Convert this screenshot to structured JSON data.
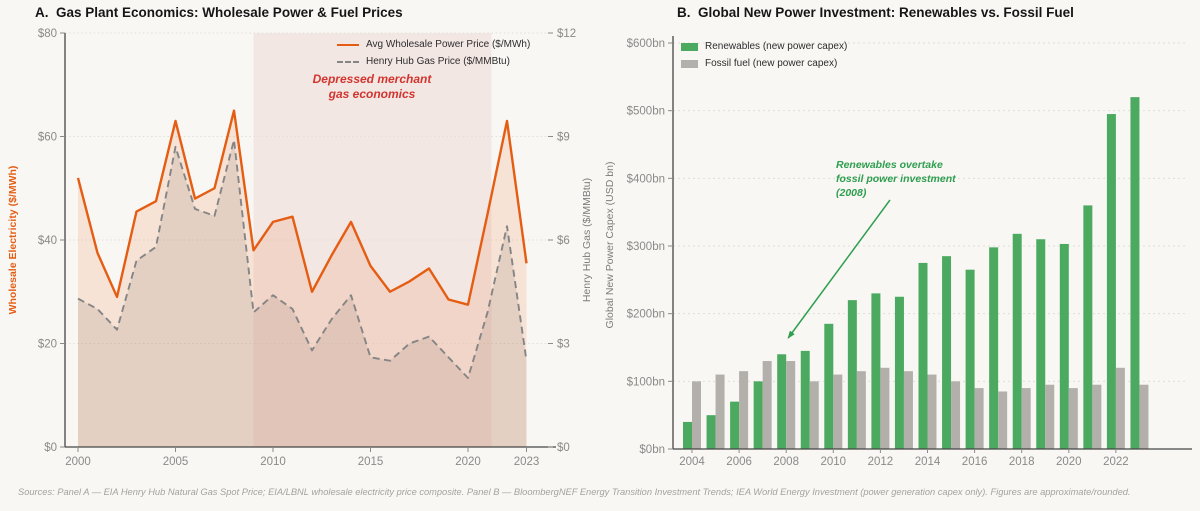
{
  "figure": {
    "background": "#f8f7f4"
  },
  "source_note": "Sources: Panel A — EIA Henry Hub Natural Gas Spot Price; EIA/LBNL wholesale electricity price composite. Panel B — BloombergNEF Energy Transition Investment Trends; IEA World Energy Investment (power generation capex only). Figures are approximate/rounded.",
  "chart_data": [
    {
      "id": "panel-a",
      "type": "line",
      "title": "A.  Gas Plant Economics: Wholesale Power & Fuel Prices",
      "x": [
        2000,
        2001,
        2002,
        2003,
        2004,
        2005,
        2006,
        2007,
        2008,
        2009,
        2010,
        2011,
        2012,
        2013,
        2014,
        2015,
        2016,
        2017,
        2018,
        2019,
        2020,
        2021,
        2022,
        2023
      ],
      "x_ticks": [
        2000,
        2005,
        2010,
        2015,
        2020,
        2023
      ],
      "series": [
        {
          "name": "Avg Wholesale Power Price ($/MWh)",
          "axis": "left",
          "style": "solid",
          "color": "#e55d13",
          "fill": "rgba(232,106,38,0.14)",
          "values": [
            52,
            37.5,
            29,
            45.5,
            47.5,
            63,
            48,
            50,
            65,
            38,
            43.5,
            44.5,
            30,
            37,
            43.5,
            35,
            30,
            32,
            34.5,
            28.5,
            27.5,
            45,
            63,
            35.5
          ]
        },
        {
          "name": "Henry Hub Gas Price ($/MMBtu)",
          "axis": "right",
          "style": "dashed",
          "color": "#858585",
          "fill": "rgba(135,128,120,0.18)",
          "values": [
            4.3,
            4.0,
            3.4,
            5.4,
            5.8,
            8.7,
            6.9,
            6.7,
            8.9,
            3.9,
            4.4,
            4.0,
            2.8,
            3.7,
            4.4,
            2.6,
            2.5,
            3.0,
            3.2,
            2.6,
            2.0,
            3.9,
            6.4,
            2.5
          ]
        }
      ],
      "left_axis": {
        "label": "Wholesale Electricity ($/MWh)",
        "ticks": [
          "$0",
          "$20",
          "$40",
          "$60",
          "$80"
        ],
        "tick_values": [
          0,
          20,
          40,
          60,
          80
        ],
        "min": 0,
        "max": 80
      },
      "right_axis": {
        "label": "Henry Hub Gas ($/MMBtu)",
        "ticks": [
          "$0",
          "$3",
          "$6",
          "$9",
          "$12"
        ],
        "tick_values": [
          0,
          3,
          6,
          9,
          12
        ],
        "min": 0,
        "max": 12
      },
      "shaded_region": {
        "from": 2009,
        "to": 2021.2,
        "color": "rgba(198,83,70,0.09)",
        "label_lines": [
          "Depressed merchant",
          "gas economics"
        ],
        "label_color": "#d2342e"
      },
      "grid": "dotted-horizontal"
    },
    {
      "id": "panel-b",
      "type": "bar",
      "title": "B.  Global New Power Investment: Renewables vs. Fossil Fuel",
      "categories": [
        2004,
        2005,
        2006,
        2007,
        2008,
        2009,
        2010,
        2011,
        2012,
        2013,
        2014,
        2015,
        2016,
        2017,
        2018,
        2019,
        2020,
        2021,
        2022,
        2023
      ],
      "x_ticks": [
        2004,
        2006,
        2008,
        2010,
        2012,
        2014,
        2016,
        2018,
        2020,
        2022
      ],
      "series": [
        {
          "name": "Renewables (new power capex)",
          "color": "#4caa60",
          "values": [
            40,
            50,
            70,
            100,
            140,
            145,
            185,
            220,
            230,
            225,
            275,
            285,
            265,
            298,
            318,
            310,
            303,
            360,
            495,
            520
          ]
        },
        {
          "name": "Fossil fuel (new power capex)",
          "color": "#b3b0ac",
          "values": [
            100,
            110,
            115,
            130,
            130,
            100,
            110,
            115,
            120,
            115,
            110,
            100,
            90,
            85,
            90,
            95,
            90,
            95,
            120,
            95
          ]
        }
      ],
      "y_axis": {
        "label": "Global New Power Capex (USD bn)",
        "ticks": [
          "$0bn",
          "$100bn",
          "$200bn",
          "$300bn",
          "$400bn",
          "$500bn",
          "$600bn"
        ],
        "tick_values": [
          0,
          100,
          200,
          300,
          400,
          500,
          600
        ],
        "min": 0,
        "max": 600
      },
      "annotation": {
        "lines": [
          "Renewables overtake",
          "fossil power investment",
          "(2008)"
        ],
        "color": "#2e9e4f",
        "arrow_points_to_year": 2008
      },
      "grid": "dashed-horizontal"
    }
  ]
}
